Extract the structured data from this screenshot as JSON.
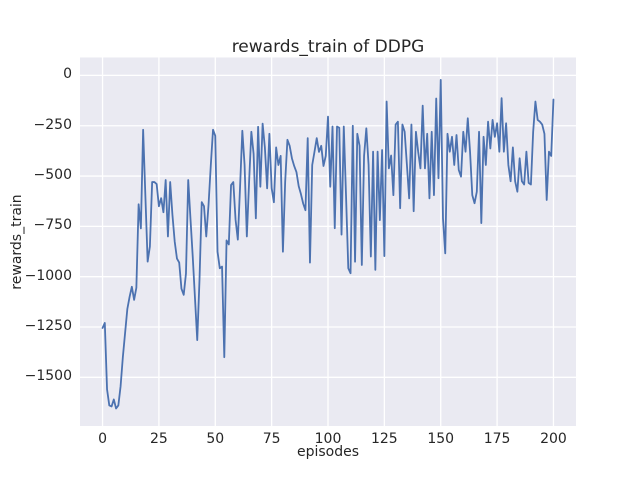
{
  "chart_data": {
    "type": "line",
    "title": "rewards_train of DDPG",
    "xlabel": "episodes",
    "ylabel": "rewards_train",
    "xlim": [
      -10,
      210
    ],
    "ylim": [
      -1742,
      89
    ],
    "grid": true,
    "legend_position": "none",
    "xticks": {
      "values": [
        0,
        25,
        50,
        75,
        100,
        125,
        150,
        175,
        200
      ],
      "labels": [
        "0",
        "25",
        "50",
        "75",
        "100",
        "125",
        "150",
        "175",
        "200"
      ]
    },
    "yticks": {
      "values": [
        0,
        -250,
        -500,
        -750,
        -1000,
        -1250,
        -1500
      ],
      "labels": [
        "0",
        "−250",
        "−500",
        "−750",
        "−1000",
        "−1250",
        "−1500"
      ]
    },
    "colors": {
      "figure_bg": "#ffffff",
      "axes_bg": "#eaeaf2",
      "grid": "#ffffff",
      "text": "#262626",
      "line": "#4c72b0"
    },
    "series": [
      {
        "name": "rewards_train",
        "color": "#4c72b0",
        "x_start": 0,
        "x_step": 1,
        "values": [
          -1255,
          -1230,
          -1560,
          -1640,
          -1645,
          -1610,
          -1655,
          -1640,
          -1545,
          -1400,
          -1280,
          -1160,
          -1100,
          -1050,
          -1115,
          -1055,
          -640,
          -760,
          -270,
          -600,
          -925,
          -850,
          -530,
          -530,
          -540,
          -650,
          -610,
          -680,
          -520,
          -800,
          -530,
          -693,
          -825,
          -910,
          -930,
          -1060,
          -1090,
          -985,
          -520,
          -712,
          -900,
          -1107,
          -1315,
          -1017,
          -630,
          -650,
          -800,
          -645,
          -450,
          -270,
          -300,
          -876,
          -958,
          -950,
          -1400,
          -820,
          -840,
          -545,
          -530,
          -717,
          -816,
          -553,
          -275,
          -445,
          -800,
          -530,
          -280,
          -390,
          -710,
          -255,
          -553,
          -240,
          -358,
          -561,
          -290,
          -560,
          -630,
          -358,
          -445,
          -400,
          -876,
          -530,
          -320,
          -350,
          -412,
          -450,
          -480,
          -550,
          -590,
          -637,
          -670,
          -312,
          -930,
          -445,
          -380,
          -312,
          -380,
          -350,
          -450,
          -400,
          -205,
          -553,
          -254,
          -759,
          -254,
          -260,
          -791,
          -254,
          -600,
          -958,
          -983,
          -250,
          -926,
          -290,
          -350,
          -942,
          -400,
          -263,
          -445,
          -900,
          -379,
          -966,
          -379,
          -719,
          -371,
          -898,
          -130,
          -462,
          -398,
          -595,
          -244,
          -230,
          -660,
          -244,
          -280,
          -445,
          -611,
          -244,
          -675,
          -280,
          -380,
          -462,
          -150,
          -462,
          -290,
          -611,
          -280,
          -595,
          -115,
          -511,
          -22,
          -710,
          -884,
          -290,
          -379,
          -305,
          -445,
          -296,
          -470,
          -503,
          -280,
          -379,
          -213,
          -379,
          -595,
          -635,
          -578,
          -280,
          -734,
          -305,
          -445,
          -230,
          -363,
          -221,
          -305,
          -238,
          -379,
          -113,
          -379,
          -238,
          -445,
          -526,
          -358,
          -526,
          -578,
          -412,
          -526,
          -542,
          -379,
          -534,
          -542,
          -280,
          -130,
          -221,
          -230,
          -244,
          -290,
          -619,
          -379,
          -400,
          -120
        ]
      }
    ]
  }
}
